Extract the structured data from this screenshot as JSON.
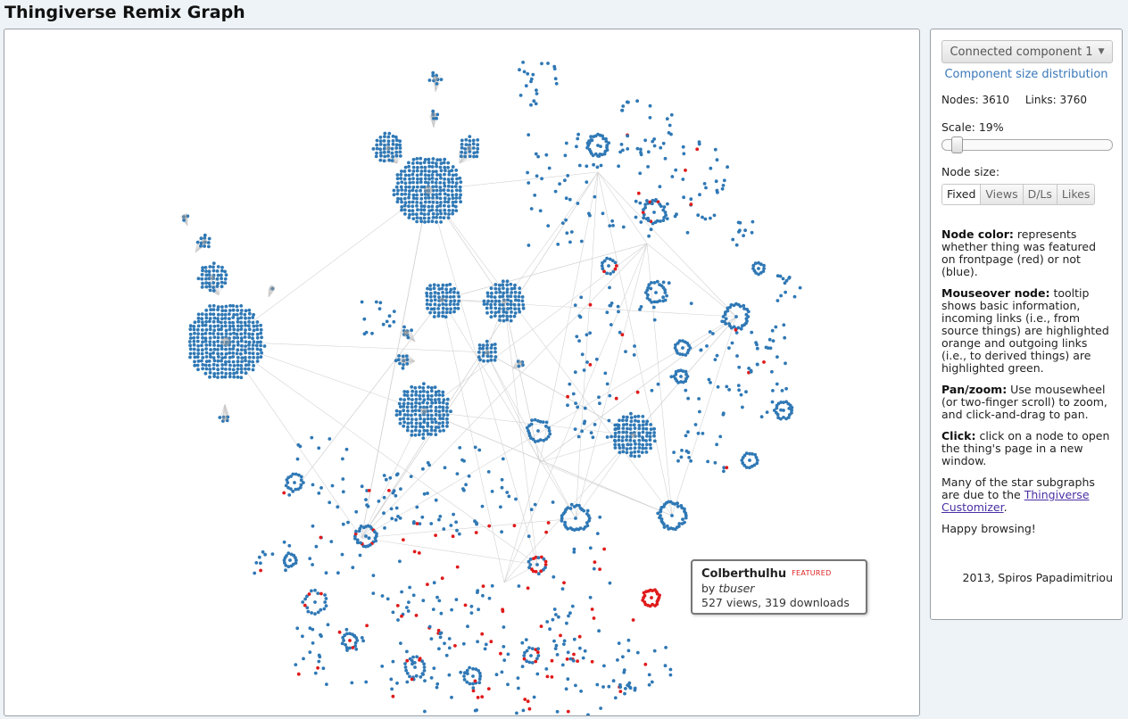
{
  "header": {
    "title": "Thingiverse Remix Graph"
  },
  "tooltip": {
    "title": "Colberthulhu",
    "badge": "FEATURED",
    "by_prefix": "by ",
    "author": "tbuser",
    "stats": "527 views, 319 downloads"
  },
  "panel": {
    "component_select": "Connected component 1",
    "size_dist_link": "Component size distribution",
    "nodes_label": "Nodes:",
    "nodes_value": "3610",
    "links_label": "Links:",
    "links_value": "3760",
    "scale_label": "Scale:",
    "scale_value": "19%",
    "scale_fraction": 0.19,
    "node_size_label": "Node size:",
    "node_size_options": [
      "Fixed",
      "Views",
      "D/Ls",
      "Likes"
    ],
    "node_size_selected": "Fixed",
    "help": {
      "color_title": "Node color:",
      "color_text": " represents whether thing was featured on frontpage (red) or not (blue).",
      "mouseover_title": "Mouseover node:",
      "mouseover_text": " tooltip shows basic information, incoming links (i.e., from source things) are highlighted orange and outgoing links (i.e., to derived things) are highlighted green.",
      "pan_title": "Pan/zoom:",
      "pan_text": " Use mousewheel (or two-finger scroll) to zoom, and click-and-drag to pan.",
      "click_title": "Click:",
      "click_text": " click on a node to open the thing's page in a new window.",
      "star_text_1": "Many of the star subgraphs are due to the ",
      "star_link": "Thingiverse Customizer",
      "star_text_2": ".",
      "happy": "Happy browsing!"
    },
    "credit": "2013, Spiros Papadimitriou"
  },
  "graph": {
    "colors": {
      "node": "#2f78b5",
      "featured": "#e01a1a",
      "edge": "#d3d3d3",
      "hub": "#999999"
    }
  }
}
